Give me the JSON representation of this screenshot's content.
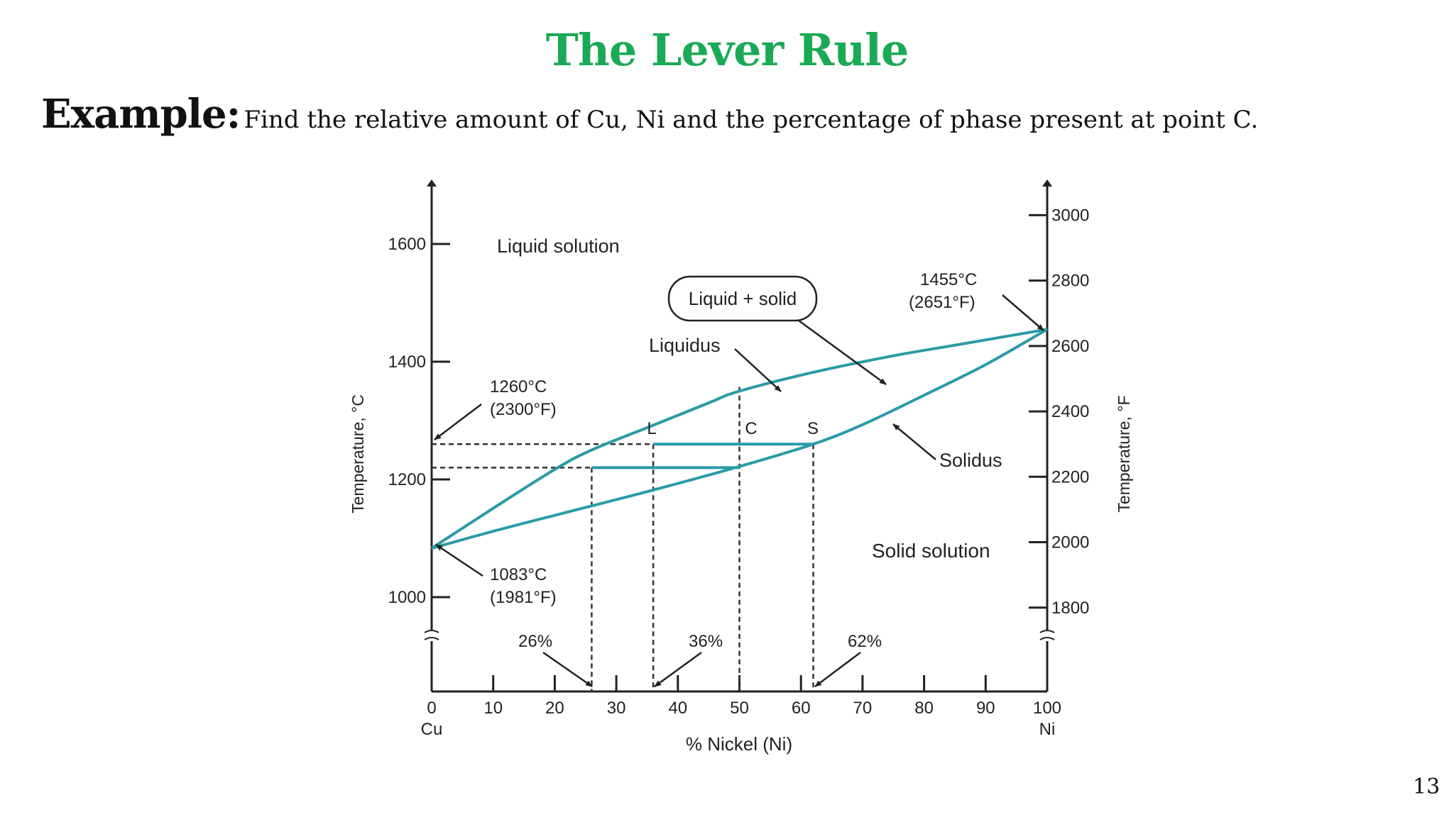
{
  "title": "The Lever Rule",
  "example": {
    "label": "Example:",
    "text": "Find the relative amount of Cu, Ni and the percentage of phase present at point C."
  },
  "page_number": "13",
  "diagram": {
    "left_axis": {
      "label": "Temperature, °C",
      "ticks": [
        {
          "value": 1000,
          "label": "1000"
        },
        {
          "value": 1200,
          "label": "1200"
        },
        {
          "value": 1400,
          "label": "1400"
        },
        {
          "value": 1600,
          "label": "1600"
        }
      ]
    },
    "right_axis": {
      "label": "Temperature, °F",
      "ticks": [
        {
          "value": 1800,
          "label": "1800"
        },
        {
          "value": 2000,
          "label": "2000"
        },
        {
          "value": 2200,
          "label": "2200"
        },
        {
          "value": 2400,
          "label": "2400"
        },
        {
          "value": 2600,
          "label": "2600"
        },
        {
          "value": 2800,
          "label": "2800"
        },
        {
          "value": 3000,
          "label": "3000"
        }
      ]
    },
    "x_axis": {
      "label": "% Nickel (Ni)",
      "ticks": [
        {
          "value": 0,
          "label": "0"
        },
        {
          "value": 10,
          "label": "10"
        },
        {
          "value": 20,
          "label": "20"
        },
        {
          "value": 30,
          "label": "30"
        },
        {
          "value": 40,
          "label": "40"
        },
        {
          "value": 50,
          "label": "50"
        },
        {
          "value": 60,
          "label": "60"
        },
        {
          "value": 70,
          "label": "70"
        },
        {
          "value": 80,
          "label": "80"
        },
        {
          "value": 90,
          "label": "90"
        },
        {
          "value": 100,
          "label": "100"
        }
      ],
      "left_end_label": "Cu",
      "right_end_label": "Ni"
    },
    "curves": {
      "color": "#2a9aa8",
      "liquidus": [
        [
          0,
          1083
        ],
        [
          10,
          1151
        ],
        [
          20,
          1217
        ],
        [
          26,
          1250
        ],
        [
          36,
          1292
        ],
        [
          45,
          1330
        ],
        [
          50,
          1350
        ],
        [
          62,
          1382
        ],
        [
          75,
          1410
        ],
        [
          85,
          1428
        ],
        [
          100,
          1455
        ]
      ],
      "solidus": [
        [
          0,
          1083
        ],
        [
          10,
          1112
        ],
        [
          20,
          1139
        ],
        [
          26,
          1155
        ],
        [
          36,
          1182
        ],
        [
          50,
          1222
        ],
        [
          62,
          1260
        ],
        [
          70,
          1293
        ],
        [
          80,
          1343
        ],
        [
          90,
          1395
        ],
        [
          100,
          1455
        ]
      ]
    },
    "tie_lines": [
      {
        "temperature": 1260,
        "from": 36,
        "to": 62
      },
      {
        "temperature": 1220,
        "from": 26,
        "to": 50
      }
    ],
    "guide_lines": {
      "vertical_compositions": [
        26,
        36,
        50,
        62
      ],
      "horizontal_temperatures": [
        1260,
        1220
      ]
    },
    "region_labels": {
      "liquid": "Liquid solution",
      "two_phase": "Liquid + solid",
      "solid": "Solid solution"
    },
    "curve_labels": {
      "liquidus": "Liquidus",
      "solidus": "Solidus"
    },
    "point_labels": {
      "L": "L",
      "C": "C",
      "S": "S"
    },
    "annotations": {
      "cu_melting": {
        "celsius": "1083°C",
        "fahrenheit": "(1981°F)"
      },
      "ni_melting": {
        "celsius": "1455°C",
        "fahrenheit": "(2651°F)"
      },
      "tie_temperature": {
        "celsius": "1260°C",
        "fahrenheit": "(2300°F)"
      },
      "composition_26": "26%",
      "composition_36": "36%",
      "composition_62": "62%"
    }
  }
}
